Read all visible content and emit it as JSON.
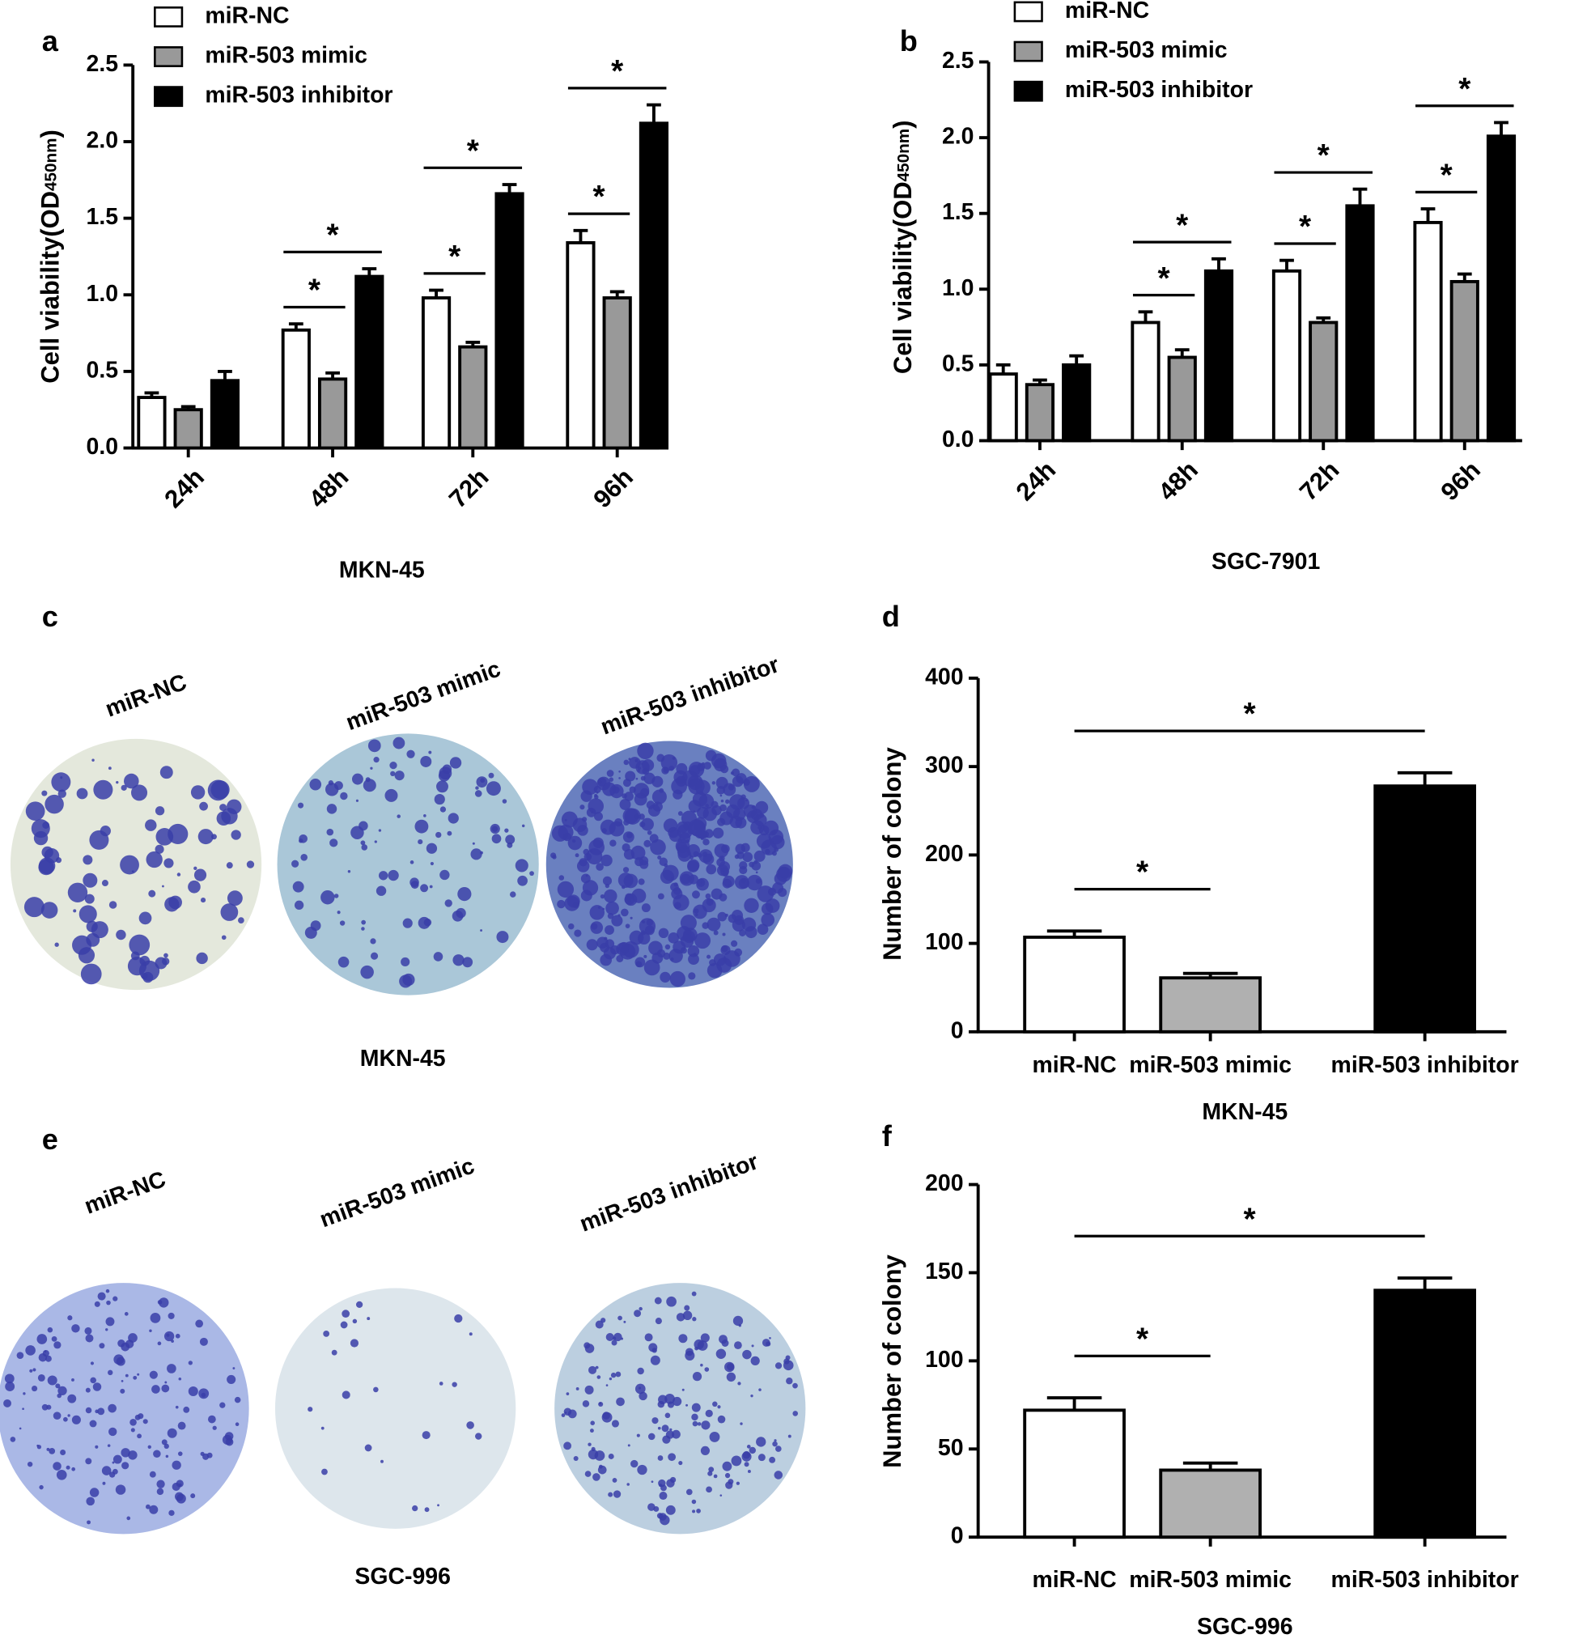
{
  "chart_data": [
    {
      "type": "bar",
      "panel": "a",
      "ylabel": "Cell viability(OD",
      "ylabel_sub": "450nm",
      "ylabel_end": ")",
      "xlabel": "MKN-45",
      "categories": [
        "24h",
        "48h",
        "72h",
        "96h"
      ],
      "series": [
        {
          "name": "miR-NC",
          "color": "#ffffff",
          "values": [
            0.33,
            0.77,
            0.98,
            1.34
          ],
          "errors": [
            0.03,
            0.04,
            0.05,
            0.08
          ]
        },
        {
          "name": "miR-503 mimic",
          "color": "#999999",
          "values": [
            0.25,
            0.45,
            0.66,
            0.98
          ],
          "errors": [
            0.02,
            0.04,
            0.03,
            0.04
          ]
        },
        {
          "name": "miR-503 inhibitor",
          "color": "#000000",
          "values": [
            0.44,
            1.12,
            1.66,
            2.12
          ],
          "errors": [
            0.06,
            0.05,
            0.06,
            0.12
          ]
        }
      ],
      "ylim": [
        0,
        2.5
      ],
      "yticks": [
        {
          "value": 0,
          "label": "0.0"
        },
        0.5,
        {
          "value": 1,
          "label": "1.0"
        },
        1.5,
        {
          "value": 2,
          "label": "2.0"
        },
        2.5
      ],
      "significance": [
        {
          "category": 1,
          "between": [
            0,
            1
          ],
          "label": "*"
        },
        {
          "category": 1,
          "between": [
            0,
            2
          ],
          "label": "*"
        },
        {
          "category": 2,
          "between": [
            0,
            1
          ],
          "label": "*"
        },
        {
          "category": 2,
          "between": [
            0,
            2
          ],
          "label": "*"
        },
        {
          "category": 3,
          "between": [
            0,
            1
          ],
          "label": "*"
        },
        {
          "category": 3,
          "between": [
            0,
            2
          ],
          "label": "*"
        }
      ]
    },
    {
      "type": "bar",
      "panel": "b",
      "ylabel": "Cell viability(OD",
      "ylabel_sub": "450nm",
      "ylabel_end": ")",
      "xlabel": "SGC-7901",
      "categories": [
        "24h",
        "48h",
        "72h",
        "96h"
      ],
      "series": [
        {
          "name": "miR-NC",
          "color": "#ffffff",
          "values": [
            0.44,
            0.78,
            1.12,
            1.44
          ],
          "errors": [
            0.06,
            0.07,
            0.07,
            0.09
          ]
        },
        {
          "name": "miR-503 mimic",
          "color": "#999999",
          "values": [
            0.37,
            0.55,
            0.78,
            1.05
          ],
          "errors": [
            0.03,
            0.05,
            0.03,
            0.05
          ]
        },
        {
          "name": "miR-503 inhibitor",
          "color": "#000000",
          "values": [
            0.5,
            1.12,
            1.55,
            2.01
          ],
          "errors": [
            0.06,
            0.08,
            0.11,
            0.09
          ]
        }
      ],
      "ylim": [
        0,
        2.5
      ],
      "yticks": [
        {
          "value": 0,
          "label": "0.0"
        },
        0.5,
        {
          "value": 1,
          "label": "1.0"
        },
        1.5,
        {
          "value": 2,
          "label": "2.0"
        },
        2.5
      ],
      "significance": [
        {
          "category": 1,
          "between": [
            0,
            1
          ],
          "label": "*"
        },
        {
          "category": 1,
          "between": [
            0,
            2
          ],
          "label": "*"
        },
        {
          "category": 2,
          "between": [
            0,
            1
          ],
          "label": "*"
        },
        {
          "category": 2,
          "between": [
            0,
            2
          ],
          "label": "*"
        },
        {
          "category": 3,
          "between": [
            0,
            1
          ],
          "label": "*"
        },
        {
          "category": 3,
          "between": [
            0,
            2
          ],
          "label": "*"
        }
      ]
    },
    {
      "type": "bar",
      "panel": "d",
      "ylabel": "Number of colony",
      "xlabel": "MKN-45",
      "categories": [
        "miR-NC",
        "miR-503 mimic",
        "miR-503 inhibitor"
      ],
      "values": [
        107,
        61,
        278
      ],
      "errors": [
        7,
        5,
        15
      ],
      "colors": [
        "#ffffff",
        "#b0b0b0",
        "#000000"
      ],
      "ylim": [
        0,
        400
      ],
      "yticks": [
        0,
        100,
        200,
        300,
        400
      ],
      "significance": [
        {
          "between": [
            0,
            1
          ],
          "label": "*"
        },
        {
          "between": [
            0,
            2
          ],
          "label": "*"
        }
      ]
    },
    {
      "type": "bar",
      "panel": "f",
      "ylabel": "Number of colony",
      "xlabel": "SGC-996",
      "categories": [
        "miR-NC",
        "miR-503 mimic",
        "miR-503 inhibitor"
      ],
      "values": [
        72,
        38,
        140
      ],
      "errors": [
        7,
        4,
        7
      ],
      "colors": [
        "#ffffff",
        "#b0b0b0",
        "#000000"
      ],
      "ylim": [
        0,
        200
      ],
      "yticks": [
        0,
        50,
        100,
        150,
        200
      ],
      "significance": [
        {
          "between": [
            0,
            1
          ],
          "label": "*"
        },
        {
          "between": [
            0,
            2
          ],
          "label": "*"
        }
      ]
    }
  ],
  "images": [
    {
      "panel": "c",
      "labels": [
        "miR-NC",
        "miR-503 mimic",
        "miR-503 inhibitor"
      ],
      "caption": "MKN-45"
    },
    {
      "panel": "e",
      "labels": [
        "miR-NC",
        "miR-503 mimic",
        "miR-503 inhibitor"
      ],
      "caption": "SGC-996"
    }
  ]
}
